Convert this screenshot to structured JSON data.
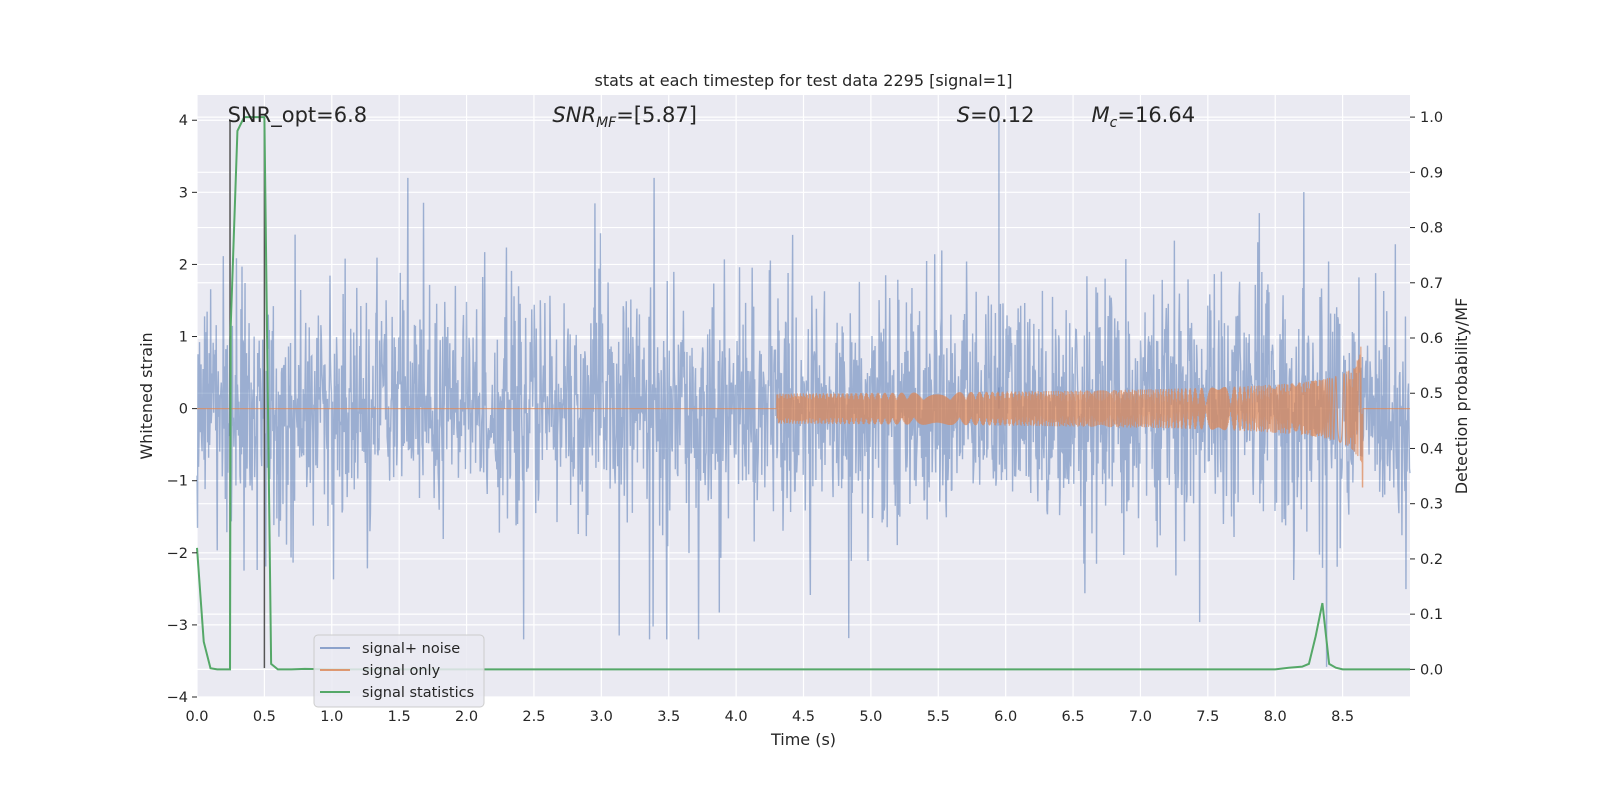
{
  "chart_data": {
    "type": "line",
    "title": "stats at each timestep for test data 2295 [signal=1]",
    "xlabel": "Time (s)",
    "ylabel_left": "Whitened strain",
    "ylabel_right": "Detection probability/MF",
    "xlim": [
      0.0,
      9.0
    ],
    "ylim_left": [
      -4.0,
      4.35
    ],
    "ylim_right": [
      -0.05,
      1.04
    ],
    "x_ticks": [
      0.0,
      0.5,
      1.0,
      1.5,
      2.0,
      2.5,
      3.0,
      3.5,
      4.0,
      4.5,
      5.0,
      5.5,
      6.0,
      6.5,
      7.0,
      7.5,
      8.0,
      8.5
    ],
    "x_tick_labels": [
      "0.0",
      "0.5",
      "1.0",
      "1.5",
      "2.0",
      "2.5",
      "3.0",
      "3.5",
      "4.0",
      "4.5",
      "5.0",
      "5.5",
      "6.0",
      "6.5",
      "7.0",
      "7.5",
      "8.0",
      "8.5"
    ],
    "y_left_ticks": [
      -4,
      -3,
      -2,
      -1,
      0,
      1,
      2,
      3,
      4
    ],
    "y_left_tick_labels": [
      "−4",
      "−3",
      "−2",
      "−1",
      "0",
      "1",
      "2",
      "3",
      "4"
    ],
    "y_right_ticks": [
      0.0,
      0.1,
      0.2,
      0.3,
      0.4,
      0.5,
      0.6,
      0.7,
      0.8,
      0.9,
      1.0
    ],
    "y_right_tick_labels": [
      "0.0",
      "0.1",
      "0.2",
      "0.3",
      "0.4",
      "0.5",
      "0.6",
      "0.7",
      "0.8",
      "0.9",
      "1.0"
    ],
    "grid": true,
    "annotations": [
      {
        "text": "SNR_opt=6.8",
        "x": 0.19,
        "y": 4.0
      },
      {
        "text": "SNR_MF=[5.87]",
        "x": 2.6,
        "y": 4.0
      },
      {
        "text": "S=0.12",
        "x": 5.6,
        "y": 4.0
      },
      {
        "text": "M_c=16.64",
        "x": 6.6,
        "y": 4.0
      }
    ],
    "vertical_markers": [
      {
        "x": 0.245,
        "y_range": [
          -3.6,
          4.0
        ],
        "color": "#555555"
      },
      {
        "x": 0.5,
        "y_range": [
          -3.6,
          4.0
        ],
        "color": "#555555"
      }
    ],
    "series": [
      {
        "name": "signal+ noise",
        "axis": "left",
        "color": "#4c72b0",
        "alpha": 0.5,
        "x_range": [
          0.0,
          9.0
        ],
        "envelope_abs_max": 3.2,
        "description_values": {
          "typical_amplitude": 1.0,
          "max_peak": 4.0,
          "max_peak_time": 5.95,
          "min_peak": -3.3
        }
      },
      {
        "name": "signal only",
        "axis": "left",
        "color": "#dd8452",
        "alpha": 0.7,
        "x_range": [
          0.0,
          9.0
        ],
        "chirp_start": 4.3,
        "merger_time": 8.65,
        "peak_amplitude": 1.2,
        "trough_amplitude": -1.4
      },
      {
        "name": "signal statistics",
        "axis": "right",
        "color": "#55a868",
        "x": [
          0.0,
          0.05,
          0.1,
          0.15,
          0.2,
          0.245,
          0.25,
          0.3,
          0.35,
          0.4,
          0.45,
          0.5,
          0.55,
          0.6,
          0.65,
          0.7,
          0.8,
          1.0,
          2.0,
          3.0,
          4.0,
          5.0,
          6.0,
          7.0,
          8.0,
          8.1,
          8.2,
          8.25,
          8.3,
          8.35,
          8.4,
          8.45,
          8.5,
          8.6,
          8.8,
          9.0
        ],
        "values": [
          0.22,
          0.05,
          0.002,
          0.0,
          0.0,
          0.0,
          0.62,
          0.975,
          1.0,
          1.0,
          1.0,
          1.0,
          0.01,
          0.0,
          0.0,
          0.0,
          0.001,
          0.0,
          0.0,
          0.0,
          0.0,
          0.0,
          0.0,
          0.0,
          0.0,
          0.003,
          0.005,
          0.01,
          0.06,
          0.12,
          0.01,
          0.003,
          0.0,
          0.0,
          0.0,
          0.0
        ]
      }
    ],
    "legend": {
      "placement": "lower-left",
      "entries": [
        "signal+ noise",
        "signal only",
        "signal statistics"
      ]
    }
  }
}
